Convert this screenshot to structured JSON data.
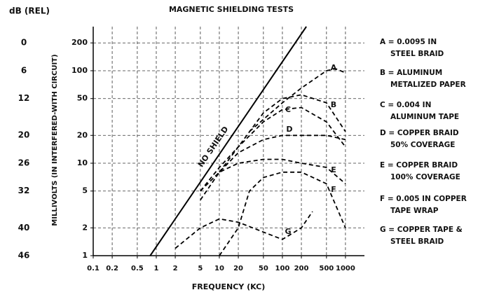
{
  "chart_data": {
    "type": "line",
    "title": "MAGNETIC SHIELDING TESTS",
    "xlabel": "FREQUENCY (KC)",
    "ylabel": "MILLIVOLTS (IN INTERFERED-WITH CIRCUIT)",
    "y2label": "dB (REL)",
    "xscale": "log",
    "yscale": "log",
    "grid": true,
    "xlim": [
      0.1,
      2000
    ],
    "ylim": [
      1,
      300
    ],
    "y2lim": [
      46.02,
      -3.52
    ],
    "xticks": [
      0.1,
      0.2,
      0.5,
      1,
      2,
      5,
      10,
      20,
      50,
      100,
      200,
      500,
      1000
    ],
    "yticks": [
      1,
      2,
      5,
      10,
      20,
      50,
      100,
      200
    ],
    "y2ticks": [
      0,
      6,
      12,
      20,
      26,
      32,
      40,
      46
    ],
    "series": [
      {
        "name": "NO SHIELD",
        "color": "#000000",
        "style": "solid",
        "x": [
          0.8,
          240
        ],
        "values": [
          1,
          300
        ]
      },
      {
        "name": "A",
        "legend": [
          "A = 0.0095 IN",
          "STEEL BRAID"
        ],
        "color": "#000000",
        "style": "dashed",
        "x": [
          30,
          100,
          200,
          500,
          700,
          1000
        ],
        "values": [
          22,
          45,
          65,
          100,
          105,
          95
        ]
      },
      {
        "name": "B",
        "legend": [
          "B = ALUMINUM",
          "METALIZED PAPER"
        ],
        "color": "#000000",
        "style": "dashed",
        "x": [
          10,
          20,
          50,
          100,
          200,
          500,
          1000
        ],
        "values": [
          8,
          15,
          35,
          50,
          55,
          45,
          22
        ]
      },
      {
        "name": "C",
        "legend": [
          "C = 0.004 IN",
          "ALUMINUM TAPE"
        ],
        "color": "#000000",
        "style": "dashed",
        "x": [
          5,
          10,
          20,
          50,
          100,
          200,
          500,
          1000
        ],
        "values": [
          5,
          9,
          15,
          28,
          38,
          40,
          28,
          15
        ]
      },
      {
        "name": "D",
        "legend": [
          "D = COPPER BRAID",
          "50% COVERAGE"
        ],
        "color": "#000000",
        "style": "dashed",
        "x": [
          5,
          10,
          20,
          50,
          100,
          200,
          500,
          1000
        ],
        "values": [
          4,
          8,
          13,
          18,
          20,
          20,
          20,
          18
        ]
      },
      {
        "name": "E",
        "legend": [
          "E = COPPER BRAID",
          "100% COVERAGE"
        ],
        "color": "#000000",
        "style": "dashed",
        "x": [
          5,
          10,
          20,
          50,
          100,
          200,
          500,
          1000
        ],
        "values": [
          5,
          8,
          10,
          11,
          11,
          10,
          9,
          6
        ]
      },
      {
        "name": "F",
        "legend": [
          "F = 0.005 IN COPPER",
          "TAPE WRAP"
        ],
        "color": "#000000",
        "style": "dashed",
        "x": [
          10,
          20,
          30,
          50,
          100,
          200,
          500,
          1000
        ],
        "values": [
          1,
          2,
          5,
          7,
          8,
          8,
          6,
          2
        ]
      },
      {
        "name": "G",
        "legend": [
          "G = COPPER TAPE &",
          "STEEL BRAID"
        ],
        "color": "#000000",
        "style": "dashed",
        "x": [
          2,
          5,
          10,
          20,
          50,
          100,
          200,
          300
        ],
        "values": [
          1.2,
          2,
          2.5,
          2.3,
          1.8,
          1.5,
          2,
          3
        ]
      }
    ]
  }
}
